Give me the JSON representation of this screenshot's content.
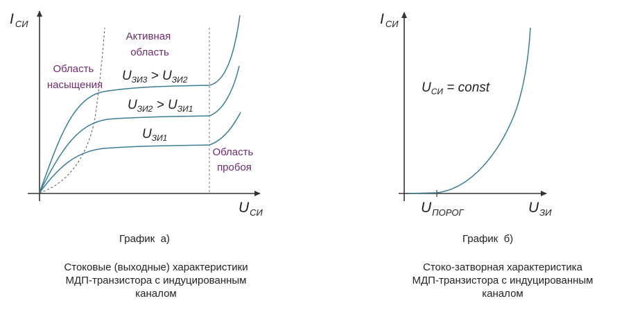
{
  "left_chart": {
    "y_axis": {
      "main": "I",
      "sub": "СИ"
    },
    "x_axis": {
      "main": "U",
      "sub": "СИ"
    },
    "region_saturation": [
      "Область",
      "насыщения"
    ],
    "region_active": [
      "Активная",
      "область"
    ],
    "region_breakdown": [
      "Область",
      "пробоя"
    ],
    "curve_labels": {
      "top": {
        "a_main": "U",
        "a_sub": "ЗИ3",
        "op": " > ",
        "b_main": "U",
        "b_sub": "ЗИ2"
      },
      "mid": {
        "a_main": "U",
        "a_sub": "ЗИ2",
        "op": " > ",
        "b_main": "U",
        "b_sub": "ЗИ1"
      },
      "low": {
        "a_main": "U",
        "a_sub": "ЗИ1"
      }
    },
    "title": "График  а)",
    "caption": [
      "Стоковые (выходные) характеристики",
      "МДП-транзистора с индуцированным",
      "каналом"
    ]
  },
  "right_chart": {
    "y_axis": {
      "main": "I",
      "sub": "СИ"
    },
    "x_axis": {
      "main": "U",
      "sub": "ЗИ"
    },
    "threshold": {
      "main": "U",
      "sub": "ПОРОГ"
    },
    "condition": {
      "main": "U",
      "sub": "СИ",
      "rest": " = const"
    },
    "title": "График  б)",
    "caption": [
      "Стоко-затворная характеристика",
      "МДП-транзистора с индуцированным",
      "каналом"
    ]
  },
  "colors": {
    "curve": "#3a7d93",
    "axis": "#333333",
    "dashed": "#777777",
    "region_text": "#6b2d6e"
  }
}
